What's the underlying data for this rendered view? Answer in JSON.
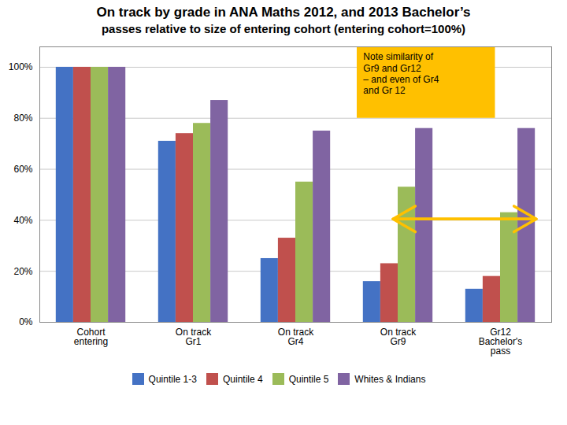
{
  "chart_data": {
    "type": "bar",
    "title": "On track by grade in ANA Maths 2012, and 2013 Bachelor’s",
    "subtitle": "passes relative to size of entering cohort (entering cohort=100%)",
    "categories": [
      "Cohort\nentering",
      "On track\nGr1",
      "On track\nGr4",
      "On track\nGr9",
      "Gr12\nBachelor's\npass"
    ],
    "series": [
      {
        "name": "Quintile 1-3",
        "color": "#4472C4",
        "values": [
          1.0,
          0.71,
          0.25,
          0.16,
          0.13
        ]
      },
      {
        "name": "Quintile 4",
        "color": "#C0504D",
        "values": [
          1.0,
          0.74,
          0.33,
          0.23,
          0.18
        ]
      },
      {
        "name": "Quintile 5",
        "color": "#9BBB59",
        "values": [
          1.0,
          0.78,
          0.55,
          0.53,
          0.43
        ]
      },
      {
        "name": "Whites & Indians",
        "color": "#8064A2",
        "values": [
          1.0,
          0.87,
          0.75,
          0.76,
          0.76
        ]
      }
    ],
    "ylim": [
      0,
      1.08
    ],
    "yticks": [
      {
        "value": 0,
        "label": "0%"
      },
      {
        "value": 0.2,
        "label": "20%"
      },
      {
        "value": 0.4,
        "label": "40%"
      },
      {
        "value": 0.6,
        "label": "60%"
      },
      {
        "value": 0.8,
        "label": "80%"
      },
      {
        "value": 1.0,
        "label": "100%"
      }
    ],
    "grid": true,
    "legend": "bottom",
    "annotations": [
      {
        "text": [
          "Note similarity of",
          "Gr9 and Gr12",
          "– and even of Gr4",
          "and Gr 12"
        ],
        "color": "#FFC000"
      },
      {
        "type": "arrow",
        "y": 0.405,
        "from": "On track\nGr9",
        "to": "Gr12\nBachelor's\npass",
        "color": "#FFC000"
      }
    ]
  }
}
